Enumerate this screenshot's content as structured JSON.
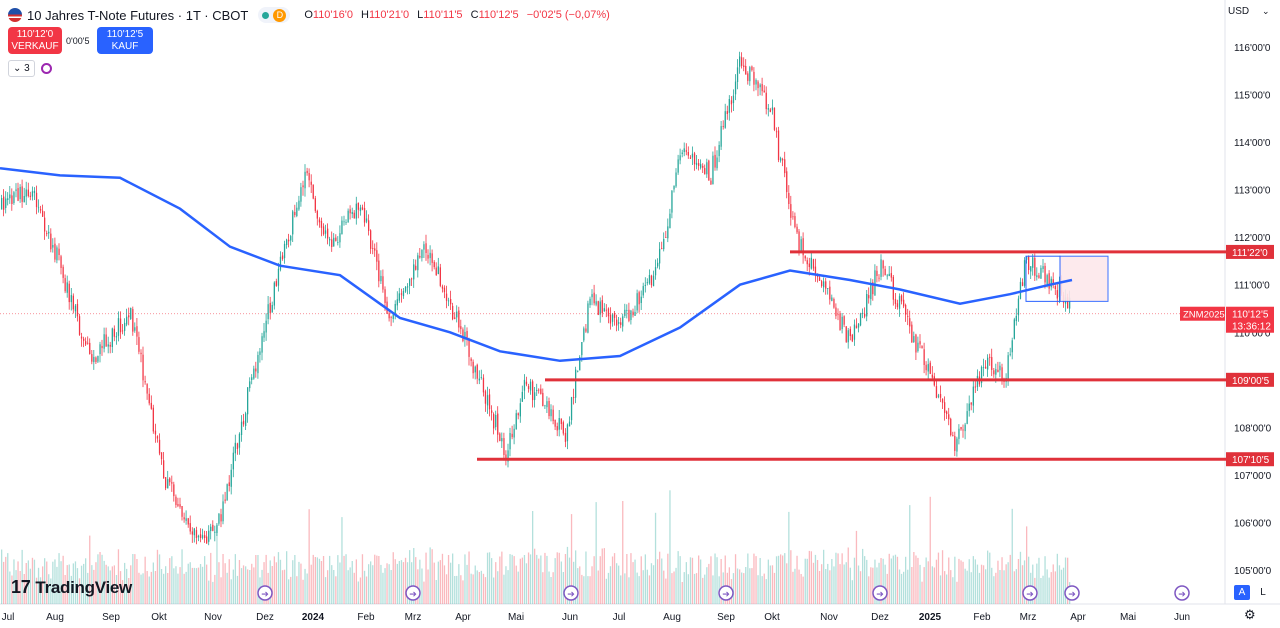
{
  "header": {
    "title": "10 Jahres T-Note Futures · 1T · CBOT",
    "status_badge": "D",
    "ohlc": [
      {
        "label": "O",
        "value": "110'16'0"
      },
      {
        "label": "H",
        "value": "110'21'0"
      },
      {
        "label": "L",
        "value": "110'11'5"
      },
      {
        "label": "C",
        "value": "110'12'5"
      }
    ],
    "change": "−0'02'5 (−0,07%)"
  },
  "trade": {
    "sell_price": "110'12'0",
    "sell_label": "VERKAUF",
    "spread": "0'00'5",
    "buy_price": "110'12'5",
    "buy_label": "KAUF"
  },
  "indicators": {
    "count": "3"
  },
  "currency": "USD",
  "logo_text": "TradingView",
  "controls": {
    "auto_label": "A",
    "log_label": "L"
  },
  "colors": {
    "up": "#26a69a",
    "down": "#f23645",
    "ma": "#2962ff",
    "level": "#e0313a",
    "box": "#2962ff"
  },
  "chart_data": {
    "type": "candlestick",
    "symbol": "ZNM2025",
    "y_axis": {
      "min": 104.8,
      "max": 116.4,
      "tick_values": [
        105,
        106,
        107,
        108,
        109,
        110,
        111,
        112,
        113,
        114,
        115,
        116
      ],
      "tick_labels": [
        "105'00'0",
        "106'00'0",
        "107'00'0",
        "108'00'0",
        "109'00'0",
        "110'00'0",
        "111'00'0",
        "112'00'0",
        "113'00'0",
        "114'00'0",
        "115'00'0",
        "116'00'0"
      ]
    },
    "x_axis": {
      "labels": [
        "Jul",
        "Aug",
        "Sep",
        "Okt",
        "Nov",
        "Dez",
        "2024",
        "Feb",
        "Mrz",
        "Apr",
        "Mai",
        "Jun",
        "Jul",
        "Aug",
        "Sep",
        "Okt",
        "Nov",
        "Dez",
        "2025",
        "Feb",
        "Mrz",
        "Apr",
        "Mai",
        "Jun"
      ],
      "bold": [
        "2024",
        "2025"
      ]
    },
    "price_path": [
      [
        0,
        112.6
      ],
      [
        30,
        113.0
      ],
      [
        55,
        111.7
      ],
      [
        90,
        109.4
      ],
      [
        130,
        110.4
      ],
      [
        165,
        106.9
      ],
      [
        190,
        105.8
      ],
      [
        215,
        105.7
      ],
      [
        250,
        108.9
      ],
      [
        280,
        111.5
      ],
      [
        305,
        113.2
      ],
      [
        330,
        111.9
      ],
      [
        360,
        112.8
      ],
      [
        390,
        110.2
      ],
      [
        425,
        111.9
      ],
      [
        450,
        110.6
      ],
      [
        480,
        108.9
      ],
      [
        505,
        107.5
      ],
      [
        525,
        108.9
      ],
      [
        565,
        107.9
      ],
      [
        590,
        110.7
      ],
      [
        620,
        110.2
      ],
      [
        655,
        111.2
      ],
      [
        680,
        113.7
      ],
      [
        710,
        113.3
      ],
      [
        740,
        115.7
      ],
      [
        770,
        114.7
      ],
      [
        795,
        112.0
      ],
      [
        820,
        111.1
      ],
      [
        850,
        109.8
      ],
      [
        880,
        111.4
      ],
      [
        905,
        110.3
      ],
      [
        940,
        108.6
      ],
      [
        955,
        107.6
      ],
      [
        985,
        109.4
      ],
      [
        1005,
        109.0
      ],
      [
        1025,
        111.5
      ],
      [
        1050,
        111.1
      ],
      [
        1070,
        110.5
      ]
    ],
    "moving_average": [
      [
        0,
        113.45
      ],
      [
        60,
        113.3
      ],
      [
        120,
        113.25
      ],
      [
        180,
        112.6
      ],
      [
        230,
        111.8
      ],
      [
        280,
        111.4
      ],
      [
        340,
        111.2
      ],
      [
        400,
        110.3
      ],
      [
        450,
        110.0
      ],
      [
        500,
        109.6
      ],
      [
        560,
        109.4
      ],
      [
        620,
        109.5
      ],
      [
        680,
        110.1
      ],
      [
        740,
        111.0
      ],
      [
        790,
        111.3
      ],
      [
        850,
        111.1
      ],
      [
        900,
        110.9
      ],
      [
        960,
        110.6
      ],
      [
        1010,
        110.8
      ],
      [
        1050,
        111.0
      ],
      [
        1072,
        111.1
      ]
    ],
    "volume_max_hint": "relative",
    "horizontal_levels": [
      {
        "label": "111'22'0",
        "value": 111.69,
        "x_start": 790
      },
      {
        "label": "109'00'5",
        "value": 109.0,
        "x_start": 545
      },
      {
        "label": "107'10'5",
        "value": 107.33,
        "x_start": 477
      }
    ],
    "last_price": {
      "symbol": "ZNM2025",
      "label": "110'12'5",
      "countdown": "13:36:12",
      "value": 110.39
    },
    "highlight_box": {
      "y_top": 111.6,
      "y_bottom": 110.65,
      "x_start": 1026,
      "x_split": 1060,
      "x_end": 1108
    },
    "event_markers": [
      265,
      413,
      571,
      726,
      880,
      1030,
      1072,
      1182
    ]
  }
}
